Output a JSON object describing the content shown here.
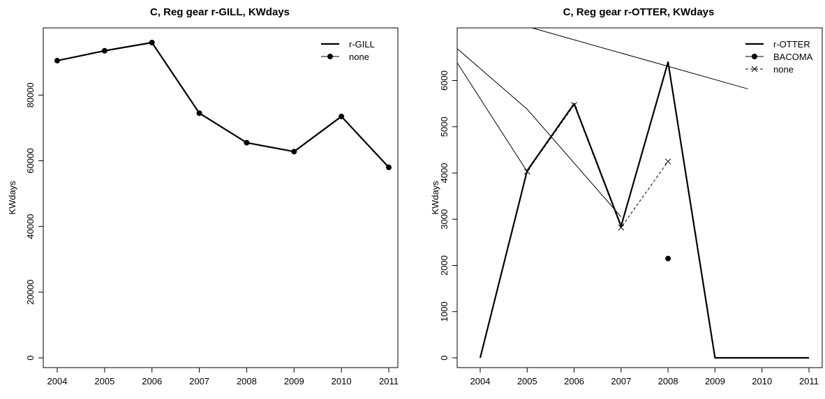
{
  "chart_data": [
    {
      "type": "line",
      "title": "C, Reg gear r-GILL, KWdays",
      "xlabel": "",
      "ylabel": "KWdays",
      "xlim": [
        2004,
        2011
      ],
      "ylim": [
        0,
        96000
      ],
      "xticks": [
        "2004",
        "2005",
        "2006",
        "2007",
        "2008",
        "2009",
        "2010",
        "2011"
      ],
      "yticks": [
        "0",
        "20000",
        "40000",
        "60000",
        "80000"
      ],
      "legend_position": "top-right",
      "series": [
        {
          "name": "r-GILL",
          "style": "solid-thick",
          "x": [
            2004,
            2005,
            2006,
            2007,
            2008,
            2009,
            2010,
            2011
          ],
          "y": [
            90500,
            93500,
            96000,
            74500,
            65500,
            62800,
            73500,
            58000
          ]
        },
        {
          "name": "none",
          "style": "solid-dots",
          "x": [
            2004,
            2005,
            2006,
            2007,
            2008,
            2009,
            2010,
            2011
          ],
          "y": [
            90500,
            93500,
            96000,
            74500,
            65500,
            62800,
            73500,
            58000
          ]
        }
      ]
    },
    {
      "type": "line",
      "title": "C, Reg gear r-OTTER, KWdays",
      "xlabel": "",
      "ylabel": "KWdays",
      "xlim": [
        2004,
        2011
      ],
      "ylim": [
        0,
        6400
      ],
      "xticks": [
        "2004",
        "2005",
        "2006",
        "2007",
        "2008",
        "2009",
        "2010",
        "2011"
      ],
      "yticks": [
        "0",
        "1000",
        "2000",
        "3000",
        "4000",
        "5000",
        "6000"
      ],
      "legend_position": "top-right",
      "series": [
        {
          "name": "r-OTTER",
          "style": "solid-thick",
          "x": [
            2004,
            2005,
            2006,
            2007,
            2008,
            2009,
            2010,
            2011
          ],
          "y": [
            0,
            4050,
            5500,
            2850,
            6400,
            0,
            0,
            0
          ]
        },
        {
          "name": "BACOMA",
          "style": "solid-dots",
          "x": [
            2008
          ],
          "y": [
            2150
          ]
        },
        {
          "name": "none",
          "style": "dashed-cross",
          "x": [
            2005,
            2006,
            2007,
            2008
          ],
          "y": [
            4030,
            5470,
            2820,
            4250
          ]
        }
      ],
      "extra_lines": [
        {
          "x": [
            2003.5,
            2005,
            2007
          ],
          "y": [
            6700,
            5380,
            3050
          ]
        },
        {
          "x": [
            2003.5,
            2005
          ],
          "y": [
            6400,
            4030
          ]
        },
        {
          "x": [
            2003.5,
            2009.7
          ],
          "y": [
            7600,
            5820
          ]
        }
      ]
    }
  ]
}
